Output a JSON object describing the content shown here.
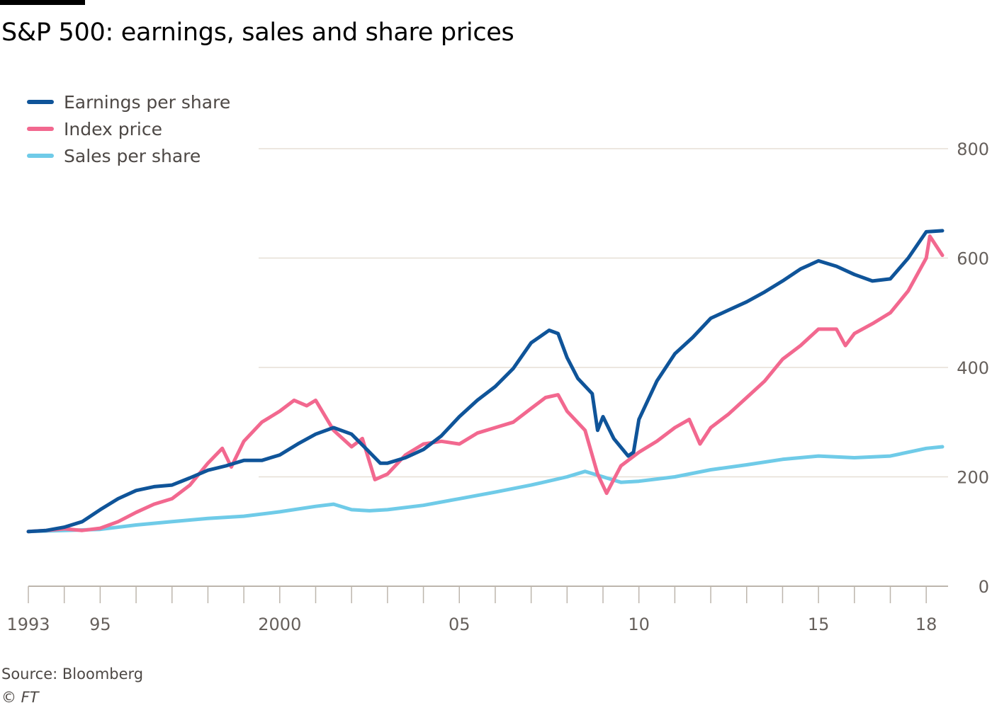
{
  "chart_data": {
    "type": "line",
    "title": "S&P 500: earnings, sales and share prices",
    "xlabel": "",
    "ylabel": "",
    "ylim": [
      0,
      800
    ],
    "yticks": [
      0,
      200,
      400,
      600,
      800
    ],
    "xlim": [
      1993.0,
      2018.45
    ],
    "xtick_labels": [
      {
        "x": 1993,
        "label": "1993"
      },
      {
        "x": 1995,
        "label": "95"
      },
      {
        "x": 2000,
        "label": "2000"
      },
      {
        "x": 2005,
        "label": "05"
      },
      {
        "x": 2010,
        "label": "10"
      },
      {
        "x": 2015,
        "label": "15"
      },
      {
        "x": 2018,
        "label": "18"
      }
    ],
    "grid": true,
    "legend_position": "top-left",
    "series": [
      {
        "name": "Earnings per share",
        "color": "#0f5499",
        "points": [
          [
            1993.0,
            100
          ],
          [
            1993.5,
            102
          ],
          [
            1994.0,
            108
          ],
          [
            1994.5,
            118
          ],
          [
            1995.0,
            140
          ],
          [
            1995.5,
            160
          ],
          [
            1996.0,
            175
          ],
          [
            1996.5,
            182
          ],
          [
            1997.0,
            185
          ],
          [
            1997.5,
            198
          ],
          [
            1998.0,
            212
          ],
          [
            1998.5,
            220
          ],
          [
            1999.0,
            230
          ],
          [
            1999.5,
            230
          ],
          [
            2000.0,
            240
          ],
          [
            2000.5,
            260
          ],
          [
            2001.0,
            278
          ],
          [
            2001.5,
            290
          ],
          [
            2002.0,
            278
          ],
          [
            2002.5,
            245
          ],
          [
            2002.8,
            225
          ],
          [
            2003.0,
            225
          ],
          [
            2003.5,
            235
          ],
          [
            2004.0,
            250
          ],
          [
            2004.5,
            275
          ],
          [
            2005.0,
            310
          ],
          [
            2005.5,
            340
          ],
          [
            2006.0,
            365
          ],
          [
            2006.5,
            398
          ],
          [
            2007.0,
            445
          ],
          [
            2007.5,
            468
          ],
          [
            2007.75,
            462
          ],
          [
            2008.0,
            418
          ],
          [
            2008.3,
            380
          ],
          [
            2008.7,
            352
          ],
          [
            2008.85,
            285
          ],
          [
            2009.0,
            310
          ],
          [
            2009.3,
            270
          ],
          [
            2009.7,
            238
          ],
          [
            2009.85,
            245
          ],
          [
            2010.0,
            305
          ],
          [
            2010.5,
            375
          ],
          [
            2011.0,
            425
          ],
          [
            2011.5,
            455
          ],
          [
            2012.0,
            490
          ],
          [
            2012.5,
            505
          ],
          [
            2013.0,
            520
          ],
          [
            2013.5,
            538
          ],
          [
            2014.0,
            558
          ],
          [
            2014.5,
            580
          ],
          [
            2015.0,
            595
          ],
          [
            2015.5,
            585
          ],
          [
            2016.0,
            570
          ],
          [
            2016.5,
            558
          ],
          [
            2017.0,
            562
          ],
          [
            2017.5,
            600
          ],
          [
            2018.0,
            648
          ],
          [
            2018.45,
            650
          ]
        ]
      },
      {
        "name": "Index price",
        "color": "#f2688f",
        "points": [
          [
            1993.0,
            100
          ],
          [
            1993.5,
            102
          ],
          [
            1994.0,
            105
          ],
          [
            1994.5,
            102
          ],
          [
            1995.0,
            106
          ],
          [
            1995.5,
            118
          ],
          [
            1996.0,
            135
          ],
          [
            1996.5,
            150
          ],
          [
            1997.0,
            160
          ],
          [
            1997.5,
            185
          ],
          [
            1998.0,
            225
          ],
          [
            1998.4,
            252
          ],
          [
            1998.65,
            218
          ],
          [
            1999.0,
            265
          ],
          [
            1999.5,
            300
          ],
          [
            2000.0,
            320
          ],
          [
            2000.4,
            340
          ],
          [
            2000.75,
            330
          ],
          [
            2001.0,
            340
          ],
          [
            2001.5,
            285
          ],
          [
            2002.0,
            255
          ],
          [
            2002.3,
            270
          ],
          [
            2002.65,
            195
          ],
          [
            2003.0,
            205
          ],
          [
            2003.5,
            240
          ],
          [
            2004.0,
            260
          ],
          [
            2004.5,
            265
          ],
          [
            2005.0,
            260
          ],
          [
            2005.5,
            280
          ],
          [
            2006.0,
            290
          ],
          [
            2006.5,
            300
          ],
          [
            2007.0,
            325
          ],
          [
            2007.4,
            345
          ],
          [
            2007.75,
            350
          ],
          [
            2008.0,
            320
          ],
          [
            2008.5,
            285
          ],
          [
            2008.85,
            205
          ],
          [
            2009.1,
            170
          ],
          [
            2009.5,
            220
          ],
          [
            2010.0,
            245
          ],
          [
            2010.5,
            265
          ],
          [
            2011.0,
            290
          ],
          [
            2011.4,
            305
          ],
          [
            2011.7,
            260
          ],
          [
            2012.0,
            290
          ],
          [
            2012.5,
            315
          ],
          [
            2013.0,
            345
          ],
          [
            2013.5,
            375
          ],
          [
            2014.0,
            415
          ],
          [
            2014.5,
            440
          ],
          [
            2015.0,
            470
          ],
          [
            2015.5,
            470
          ],
          [
            2015.75,
            440
          ],
          [
            2016.0,
            462
          ],
          [
            2016.5,
            480
          ],
          [
            2017.0,
            500
          ],
          [
            2017.5,
            540
          ],
          [
            2018.0,
            600
          ],
          [
            2018.1,
            640
          ],
          [
            2018.45,
            605
          ]
        ]
      },
      {
        "name": "Sales per share",
        "color": "#6fcbe8",
        "points": [
          [
            1993.0,
            100
          ],
          [
            1994.0,
            102
          ],
          [
            1995.0,
            104
          ],
          [
            1996.0,
            112
          ],
          [
            1997.0,
            118
          ],
          [
            1998.0,
            124
          ],
          [
            1999.0,
            128
          ],
          [
            2000.0,
            136
          ],
          [
            2001.0,
            146
          ],
          [
            2001.5,
            150
          ],
          [
            2002.0,
            140
          ],
          [
            2002.5,
            138
          ],
          [
            2003.0,
            140
          ],
          [
            2004.0,
            148
          ],
          [
            2005.0,
            160
          ],
          [
            2006.0,
            172
          ],
          [
            2007.0,
            185
          ],
          [
            2008.0,
            200
          ],
          [
            2008.5,
            210
          ],
          [
            2009.0,
            200
          ],
          [
            2009.5,
            190
          ],
          [
            2010.0,
            192
          ],
          [
            2011.0,
            200
          ],
          [
            2012.0,
            213
          ],
          [
            2013.0,
            222
          ],
          [
            2014.0,
            232
          ],
          [
            2015.0,
            238
          ],
          [
            2016.0,
            235
          ],
          [
            2017.0,
            238
          ],
          [
            2018.0,
            252
          ],
          [
            2018.45,
            255
          ]
        ]
      }
    ]
  },
  "footer": {
    "source": "Source: Bloomberg",
    "credit": "© FT"
  }
}
